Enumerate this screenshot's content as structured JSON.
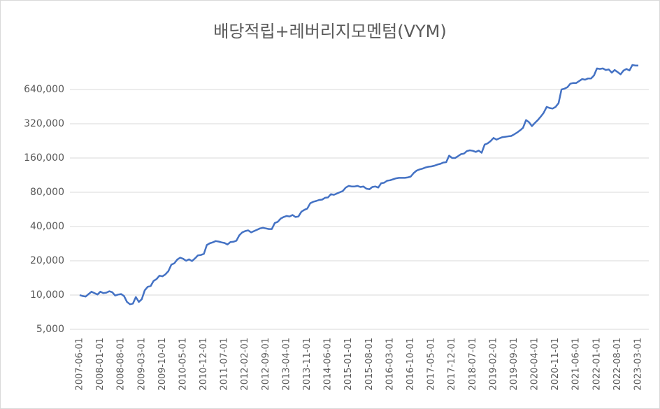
{
  "chart_data": {
    "type": "line",
    "title": "배당적립+레버리지모멘텀(VYM)",
    "log_scale": true,
    "grid": true,
    "ylim": [
      5000,
      1280000
    ],
    "yticks": [
      {
        "value": 5000,
        "label": "5,000"
      },
      {
        "value": 10000,
        "label": "10,000"
      },
      {
        "value": 20000,
        "label": "20,000"
      },
      {
        "value": 40000,
        "label": "40,000"
      },
      {
        "value": 80000,
        "label": "80,000"
      },
      {
        "value": 160000,
        "label": "160,000"
      },
      {
        "value": 320000,
        "label": "320,000"
      },
      {
        "value": 640000,
        "label": "640,000"
      }
    ],
    "categories": [
      "2007-06-01",
      null,
      null,
      null,
      null,
      null,
      null,
      "2008-01-01",
      null,
      null,
      null,
      null,
      null,
      null,
      "2008-08-01",
      null,
      null,
      null,
      null,
      null,
      null,
      "2009-03-01",
      null,
      null,
      null,
      null,
      null,
      null,
      "2009-10-01",
      null,
      null,
      null,
      null,
      null,
      null,
      "2010-05-01",
      null,
      null,
      null,
      null,
      null,
      null,
      "2010-12-01",
      null,
      null,
      null,
      null,
      null,
      null,
      "2011-07-01",
      null,
      null,
      null,
      null,
      null,
      null,
      "2012-02-01",
      null,
      null,
      null,
      null,
      null,
      null,
      "2012-09-01",
      null,
      null,
      null,
      null,
      null,
      null,
      "2013-04-01",
      null,
      null,
      null,
      null,
      null,
      null,
      "2013-11-01",
      null,
      null,
      null,
      null,
      null,
      null,
      "2014-06-01",
      null,
      null,
      null,
      null,
      null,
      null,
      "2015-01-01",
      null,
      null,
      null,
      null,
      null,
      null,
      "2015-08-01",
      null,
      null,
      null,
      null,
      null,
      null,
      "2016-03-01",
      null,
      null,
      null,
      null,
      null,
      null,
      "2016-10-01",
      null,
      null,
      null,
      null,
      null,
      null,
      "2017-05-01",
      null,
      null,
      null,
      null,
      null,
      null,
      "2017-12-01",
      null,
      null,
      null,
      null,
      null,
      null,
      "2018-07-01",
      null,
      null,
      null,
      null,
      null,
      null,
      "2019-02-01",
      null,
      null,
      null,
      null,
      null,
      null,
      "2019-09-01",
      null,
      null,
      null,
      null,
      null,
      null,
      "2020-04-01",
      null,
      null,
      null,
      null,
      null,
      null,
      "2020-11-01",
      null,
      null,
      null,
      null,
      null,
      null,
      "2021-06-01",
      null,
      null,
      null,
      null,
      null,
      null,
      "2022-01-01",
      null,
      null,
      null,
      null,
      null,
      null,
      "2022-08-01",
      null,
      null,
      null,
      null,
      null,
      null,
      "2023-03-01"
    ],
    "series": [
      {
        "color": "#4472c4",
        "values": [
          10000,
          9800,
          9700,
          10200,
          10700,
          10400,
          10100,
          10700,
          10400,
          10500,
          10800,
          10600,
          9900,
          10100,
          10200,
          9800,
          8700,
          8300,
          8400,
          9600,
          8700,
          9200,
          11000,
          11800,
          12000,
          13300,
          13800,
          14800,
          14600,
          15200,
          16200,
          18500,
          19000,
          20500,
          21300,
          20800,
          20000,
          20600,
          19900,
          21000,
          22300,
          22500,
          23000,
          27500,
          28500,
          29000,
          29800,
          29500,
          29000,
          28700,
          27800,
          29200,
          29400,
          30000,
          33500,
          35500,
          36500,
          37000,
          35500,
          36500,
          37500,
          38500,
          39000,
          38500,
          38000,
          38000,
          43000,
          44000,
          47000,
          48500,
          49500,
          49000,
          50500,
          48500,
          49000,
          54000,
          56000,
          57500,
          64000,
          66000,
          67000,
          68500,
          69000,
          71500,
          72000,
          77000,
          76000,
          78000,
          80000,
          82000,
          88000,
          91000,
          90000,
          90000,
          91000,
          89000,
          90000,
          86000,
          85000,
          89000,
          90000,
          88000,
          96000,
          97000,
          101000,
          102000,
          104000,
          106000,
          107000,
          107000,
          107000,
          108000,
          110000,
          118000,
          124000,
          127000,
          129000,
          132000,
          134000,
          135000,
          137000,
          140000,
          142000,
          146000,
          147000,
          168000,
          160000,
          160000,
          166000,
          173000,
          175000,
          184000,
          187000,
          185000,
          181000,
          186000,
          178000,
          210000,
          215000,
          225000,
          240000,
          232000,
          238000,
          244000,
          246000,
          248000,
          250000,
          258000,
          268000,
          280000,
          295000,
          345000,
          330000,
          305000,
          325000,
          345000,
          370000,
          400000,
          450000,
          440000,
          435000,
          450000,
          485000,
          640000,
          650000,
          670000,
          720000,
          730000,
          730000,
          760000,
          790000,
          780000,
          800000,
          800000,
          850000,
          980000,
          970000,
          980000,
          950000,
          960000,
          900000,
          950000,
          910000,
          870000,
          940000,
          970000,
          940000,
          1050000,
          1040000,
          1040000
        ]
      }
    ]
  }
}
